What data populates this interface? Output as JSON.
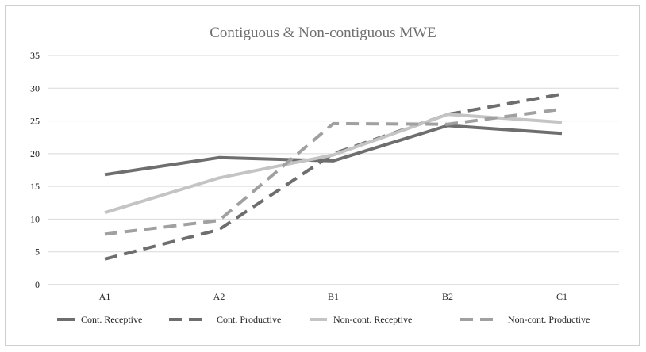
{
  "chart_data": {
    "type": "line",
    "title": "Contiguous & Non-contiguous MWE",
    "xlabel": "",
    "ylabel": "",
    "categories": [
      "A1",
      "A2",
      "B1",
      "B2",
      "C1"
    ],
    "ylim": [
      0,
      35
    ],
    "yticks": [
      0,
      5,
      10,
      15,
      20,
      25,
      30,
      35
    ],
    "grid": true,
    "legend_position": "bottom",
    "series": [
      {
        "name": "Cont. Receptive",
        "values": [
          16.8,
          19.4,
          18.9,
          24.3,
          23.1
        ],
        "color": "#6e6e6e",
        "dashed": false
      },
      {
        "name": "Cont. Productive",
        "values": [
          3.9,
          8.4,
          20.0,
          26.0,
          29.1
        ],
        "color": "#6e6e6e",
        "dashed": true
      },
      {
        "name": "Non-cont. Receptive",
        "values": [
          11.0,
          16.3,
          19.8,
          26.0,
          24.8
        ],
        "color": "#c4c4c4",
        "dashed": false
      },
      {
        "name": "Non-cont. Productive",
        "values": [
          7.7,
          9.8,
          24.6,
          24.5,
          26.8
        ],
        "color": "#a0a0a0",
        "dashed": true
      }
    ]
  }
}
